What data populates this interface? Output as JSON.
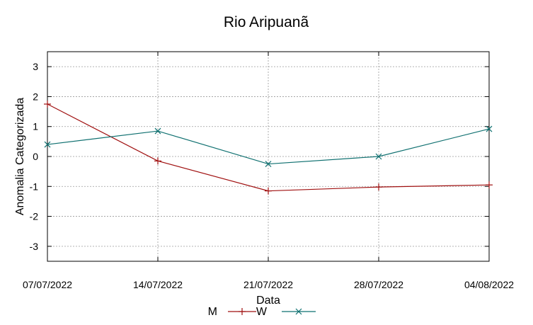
{
  "chart_data": {
    "type": "line",
    "title": "Rio Aripuanã",
    "xlabel": "Data",
    "ylabel": "Anomalia Categorizada",
    "categories": [
      "07/07/2022",
      "14/07/2022",
      "21/07/2022",
      "28/07/2022",
      "04/08/2022"
    ],
    "yticks": [
      "3",
      "2",
      "1",
      "0",
      "-1",
      "-2",
      "-3"
    ],
    "ylim": [
      -3.5,
      3.5
    ],
    "grid": true,
    "legend_position": "bottom",
    "series": [
      {
        "name": "M",
        "marker": "plus",
        "color": "#a01010",
        "values": [
          1.75,
          -0.15,
          -1.15,
          -1.02,
          -0.95
        ]
      },
      {
        "name": "W",
        "marker": "x",
        "color": "#0f7070",
        "values": [
          0.4,
          0.85,
          -0.25,
          0.0,
          0.92
        ]
      }
    ]
  }
}
